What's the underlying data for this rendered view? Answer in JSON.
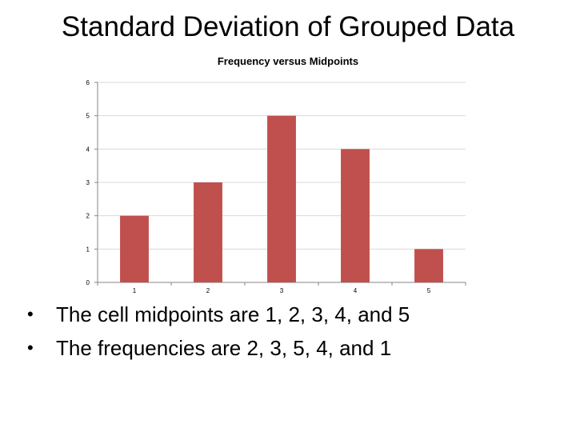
{
  "slide": {
    "title": "Standard Deviation of Grouped Data",
    "bullets": [
      "The cell midpoints are 1, 2, 3, 4, and 5",
      "The frequencies are 2, 3, 5, 4, and 1"
    ]
  },
  "chart_data": {
    "type": "bar",
    "title": "Frequency versus Midpoints",
    "xlabel": "",
    "ylabel": "",
    "categories": [
      "1",
      "2",
      "3",
      "4",
      "5"
    ],
    "values": [
      2,
      3,
      5,
      4,
      1
    ],
    "ylim": [
      0,
      6
    ],
    "yticks": [
      0,
      1,
      2,
      3,
      4,
      5,
      6
    ],
    "grid": true,
    "legend": "none",
    "colors": {
      "bar": "#c0504d",
      "grid": "#d9d9d9",
      "axis": "#868686"
    }
  }
}
